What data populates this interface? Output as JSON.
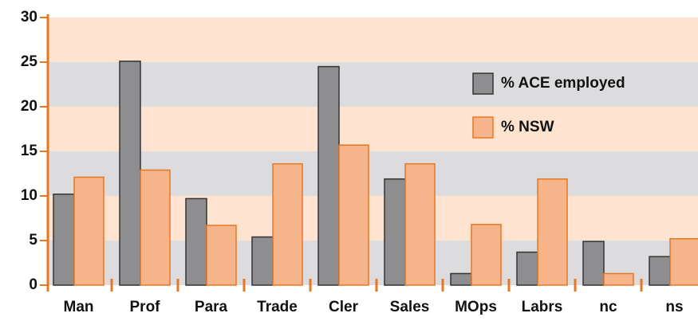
{
  "chart_data": {
    "type": "bar",
    "categories": [
      "Man",
      "Prof",
      "Para",
      "Trade",
      "Cler",
      "Sales",
      "MOps",
      "Labrs",
      "nc",
      "ns"
    ],
    "series": [
      {
        "name": "% ACE employed",
        "color": "#8e8e90",
        "values": [
          10.2,
          25.1,
          9.7,
          5.4,
          24.5,
          11.9,
          1.3,
          3.7,
          4.9,
          3.2
        ]
      },
      {
        "name": "% NSW",
        "color": "#f5b48a",
        "values": [
          12.1,
          12.9,
          6.7,
          13.6,
          15.7,
          13.6,
          6.8,
          11.9,
          1.3,
          5.2
        ]
      }
    ],
    "ylim": [
      0,
      30
    ],
    "yticks": [
      0,
      5,
      10,
      15,
      20,
      25,
      30
    ],
    "grid": true,
    "legend": "top-right"
  }
}
